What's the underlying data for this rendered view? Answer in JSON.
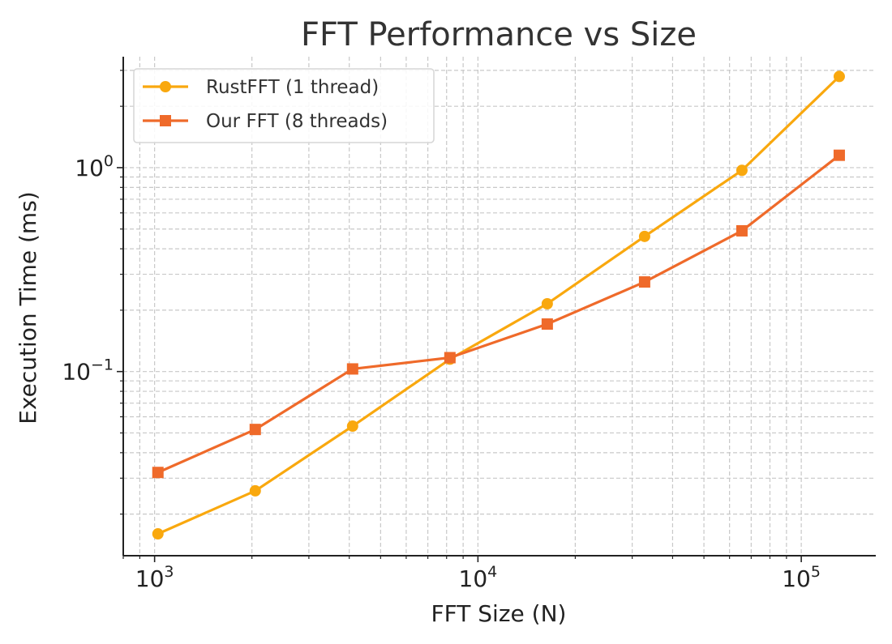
{
  "chart_data": {
    "type": "line",
    "title": "FFT Performance vs Size",
    "xlabel": "FFT Size (N)",
    "ylabel": "Execution Time (ms)",
    "xscale": "log",
    "yscale": "log",
    "xlim": [
      800,
      170000
    ],
    "ylim": [
      0.0125,
      3.5
    ],
    "grid": "both (major and minor, dashed)",
    "legend_position": "top-left",
    "x_ticks": [
      {
        "value": 1000,
        "base": "10",
        "exp": "3"
      },
      {
        "value": 10000,
        "base": "10",
        "exp": "4"
      },
      {
        "value": 100000,
        "base": "10",
        "exp": "5"
      }
    ],
    "y_ticks": [
      {
        "value": 0.1,
        "base": "10",
        "exp": "−1"
      },
      {
        "value": 1,
        "base": "10",
        "exp": "0"
      }
    ],
    "x": [
      1024,
      2048,
      4096,
      8192,
      16384,
      32768,
      65536,
      131072
    ],
    "series": [
      {
        "name": "RustFFT (1 thread)",
        "color": "#f9a80e",
        "marker": "circle",
        "values": [
          0.016,
          0.026,
          0.054,
          0.115,
          0.215,
          0.46,
          0.97,
          2.8
        ]
      },
      {
        "name": "Our FFT (8 threads)",
        "color": "#ef6a2a",
        "marker": "square",
        "values": [
          0.032,
          0.052,
          0.103,
          0.117,
          0.171,
          0.275,
          0.49,
          1.15
        ]
      }
    ]
  }
}
